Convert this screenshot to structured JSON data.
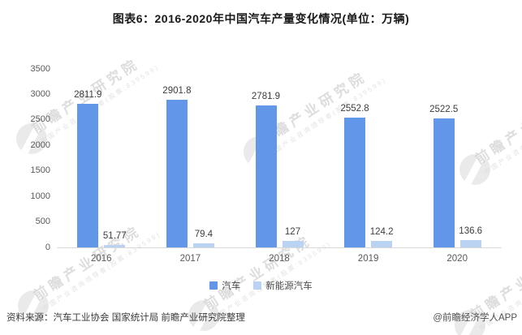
{
  "title": "图表6：2016-2020年中国汽车产量变化情况(单位：万辆)",
  "chart_data": {
    "type": "bar",
    "categories": [
      "2016",
      "2017",
      "2018",
      "2019",
      "2020"
    ],
    "series": [
      {
        "name": "汽车",
        "color": "#6296E8",
        "values": [
          2811.9,
          2901.8,
          2781.9,
          2552.8,
          2522.5
        ]
      },
      {
        "name": "新能源汽车",
        "color": "#BAD3F2",
        "values": [
          51.77,
          79.4,
          127,
          124.2,
          136.6
        ]
      }
    ],
    "title": "图表6：2016-2020年中国汽车产量变化情况(单位：万辆)",
    "xlabel": "",
    "ylabel": "",
    "ylim": [
      0,
      3500
    ],
    "yticks": [
      0,
      500,
      1000,
      1500,
      2000,
      2500,
      3000,
      3500
    ],
    "grid": false,
    "legend_position": "bottom",
    "value_labels": true,
    "axis_line_color": "#d9d9d9"
  },
  "footer": {
    "source": "资料来源：汽车工业协会 国家统计局 前瞻产业研究院整理",
    "credit": "@前瞻经济学人APP"
  },
  "watermark": {
    "brand": "前瞻产业研究院",
    "tagline": "中国产业咨询领导者(股票:839599)"
  }
}
